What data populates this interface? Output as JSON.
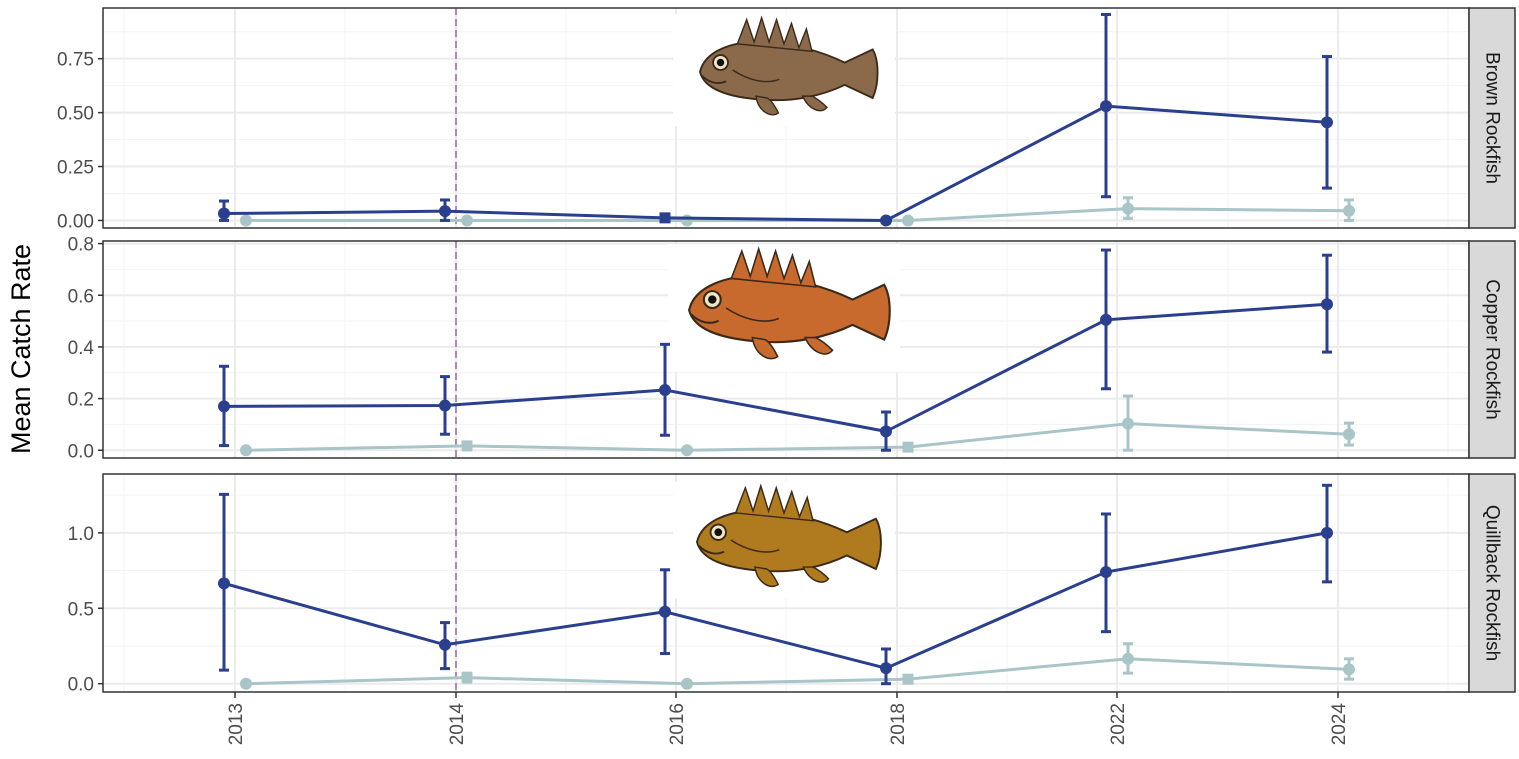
{
  "colors": {
    "series_dark": "#2a3f8d",
    "series_light": "#a9c5c8",
    "ref_line": "#9b6aa6",
    "strip_bg": "#d9d9d9",
    "grid_major": "#ebebeb",
    "grid_minor": "#f3f3f3",
    "panel_border": "#333333"
  },
  "chart_data": {
    "type": "line",
    "ylabel": "Mean Catch Rate",
    "x_categories": [
      "2013",
      "2014",
      "2016",
      "2018",
      "2022",
      "2024"
    ],
    "reference_line_x": "2014",
    "panels": [
      {
        "strip": "Brown Rockfish",
        "icon": "brown-rockfish-illustration",
        "ylim": [
          -0.035,
          0.985
        ],
        "yticks": [
          0.0,
          0.25,
          0.5,
          0.75
        ],
        "ytick_labels": [
          "0.00",
          "0.25",
          "0.50",
          "0.75"
        ],
        "series": [
          {
            "values": [
              0.032,
              0.043,
              0.012,
              0.0,
              0.53,
              0.455
            ],
            "lower": [
              0.0,
              0.0,
              0.0,
              0.0,
              0.11,
              0.15
            ],
            "upper": [
              0.09,
              0.095,
              0.025,
              0.0,
              0.955,
              0.76
            ],
            "markers": [
              "circle",
              "circle",
              "square",
              "circle",
              "circle",
              "circle"
            ]
          },
          {
            "values": [
              0.0,
              0.0,
              0.0,
              0.0,
              0.055,
              0.045
            ],
            "lower": [
              0.0,
              0.0,
              0.0,
              0.0,
              0.01,
              0.0
            ],
            "upper": [
              0.0,
              0.0,
              0.0,
              0.0,
              0.105,
              0.095
            ],
            "markers": [
              "circle",
              "circle",
              "circle",
              "circle",
              "circle",
              "circle"
            ]
          }
        ]
      },
      {
        "strip": "Copper Rockfish",
        "icon": "copper-rockfish-illustration",
        "ylim": [
          -0.03,
          0.81
        ],
        "yticks": [
          0.0,
          0.2,
          0.4,
          0.6,
          0.8
        ],
        "ytick_labels": [
          "0.0",
          "0.2",
          "0.4",
          "0.6",
          "0.8"
        ],
        "series": [
          {
            "values": [
              0.17,
              0.173,
              0.233,
              0.073,
              0.505,
              0.565
            ],
            "lower": [
              0.018,
              0.062,
              0.058,
              0.0,
              0.238,
              0.38
            ],
            "upper": [
              0.325,
              0.285,
              0.41,
              0.148,
              0.775,
              0.755
            ],
            "markers": [
              "circle",
              "circle",
              "circle",
              "circle",
              "circle",
              "circle"
            ]
          },
          {
            "values": [
              0.0,
              0.017,
              0.0,
              0.012,
              0.103,
              0.062
            ],
            "lower": [
              0.0,
              0.005,
              0.0,
              0.003,
              0.0,
              0.02
            ],
            "upper": [
              0.0,
              0.027,
              0.0,
              0.02,
              0.21,
              0.105
            ],
            "markers": [
              "circle",
              "square",
              "circle",
              "square",
              "circle",
              "circle"
            ]
          }
        ]
      },
      {
        "strip": "Quillback Rockfish",
        "icon": "quillback-rockfish-illustration",
        "ylim": [
          -0.055,
          1.39
        ],
        "yticks": [
          0.0,
          0.5,
          1.0
        ],
        "ytick_labels": [
          "0.0",
          "0.5",
          "1.0"
        ],
        "series": [
          {
            "values": [
              0.665,
              0.258,
              0.477,
              0.103,
              0.74,
              1.0
            ],
            "lower": [
              0.09,
              0.1,
              0.2,
              0.0,
              0.345,
              0.675
            ],
            "upper": [
              1.255,
              0.405,
              0.755,
              0.23,
              1.125,
              1.315
            ],
            "markers": [
              "circle",
              "circle",
              "circle",
              "circle",
              "circle",
              "circle"
            ]
          },
          {
            "values": [
              0.0,
              0.04,
              0.0,
              0.03,
              0.165,
              0.095
            ],
            "lower": [
              0.0,
              0.01,
              0.0,
              0.01,
              0.07,
              0.03
            ],
            "upper": [
              0.0,
              0.07,
              0.0,
              0.05,
              0.265,
              0.165
            ],
            "markers": [
              "circle",
              "square",
              "circle",
              "square",
              "circle",
              "circle"
            ]
          }
        ]
      }
    ]
  }
}
